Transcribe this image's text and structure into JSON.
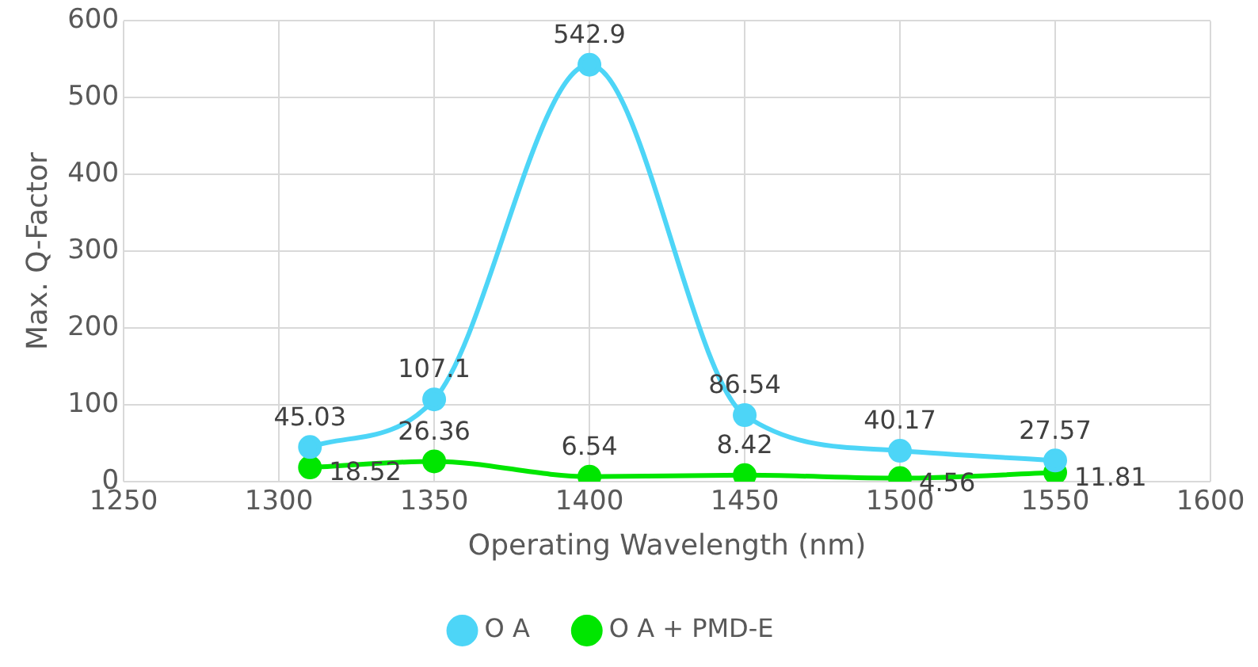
{
  "chart_data": {
    "type": "line",
    "xlabel": "Operating Wavelength (nm)",
    "ylabel": "Max. Q-Factor",
    "x": [
      1310,
      1350,
      1400,
      1450,
      1500,
      1550
    ],
    "series": [
      {
        "name": "O A",
        "color": "#4dd5f7",
        "values": [
          45.03,
          107.1,
          542.9,
          86.54,
          40.17,
          27.57
        ]
      },
      {
        "name": "O A + PMD-E",
        "color": "#00e600",
        "values": [
          18.52,
          26.36,
          6.54,
          8.42,
          4.56,
          11.81
        ]
      }
    ],
    "xlim": [
      1250,
      1600
    ],
    "xticks": [
      1250,
      1300,
      1350,
      1400,
      1450,
      1500,
      1550,
      1600
    ],
    "ylim": [
      0,
      600
    ],
    "yticks": [
      0,
      100,
      200,
      300,
      400,
      500,
      600
    ],
    "grid": true,
    "legend": "bottom",
    "marker": "circle",
    "line_style": "solid",
    "data_labels": true
  }
}
